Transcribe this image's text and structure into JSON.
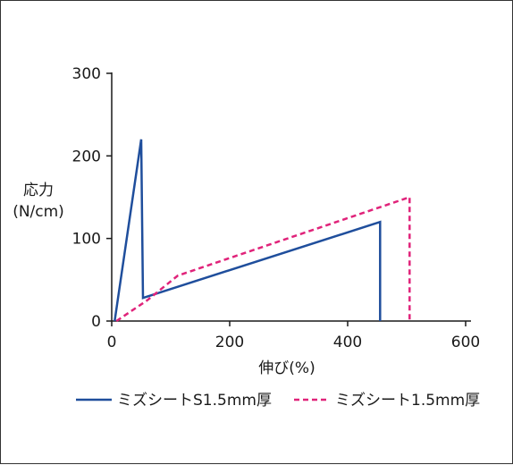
{
  "chart_data": {
    "type": "line",
    "xlabel": "伸び(%)",
    "ylabel": [
      "応力",
      "(N/cm)"
    ],
    "xlim": [
      0,
      600
    ],
    "ylim": [
      0,
      300
    ],
    "xticks": [
      0,
      200,
      400,
      600
    ],
    "yticks": [
      0,
      100,
      200,
      300
    ],
    "grid": false,
    "legend_position": "bottom",
    "series": [
      {
        "name": "ミズシートS1.5mm厚",
        "color": "#1f4e9c",
        "style": "solid",
        "points": [
          [
            5,
            0
          ],
          [
            50,
            220
          ],
          [
            53,
            28
          ],
          [
            455,
            120
          ],
          [
            455,
            0
          ]
        ]
      },
      {
        "name": "ミズシート1.5mm厚",
        "color": "#e0237a",
        "style": "dashed",
        "points": [
          [
            8,
            0
          ],
          [
            60,
            25
          ],
          [
            112,
            55
          ],
          [
            505,
            150
          ],
          [
            505,
            0
          ]
        ]
      }
    ]
  }
}
